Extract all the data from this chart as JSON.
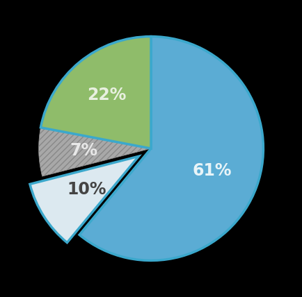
{
  "slices": [
    61,
    10,
    7,
    22
  ],
  "labels": [
    "61%",
    "10%",
    "7%",
    "22%"
  ],
  "colors": [
    "#5BACD4",
    "#DCE9F0",
    "#A8A8A8",
    "#8FBC6A"
  ],
  "explode": [
    0,
    0.13,
    0,
    0
  ],
  "startangle": 90,
  "hatch": [
    "",
    "",
    "////",
    ""
  ],
  "label_colors": [
    "#e8f4f8",
    "#444444",
    "#e8e8e8",
    "#e8f0e0"
  ],
  "label_fontsize": 17,
  "background_color": "#000000",
  "edge_color": "#3BA8CC",
  "edge_width": 2.5,
  "figsize": [
    4.34,
    4.28
  ],
  "dpi": 100
}
